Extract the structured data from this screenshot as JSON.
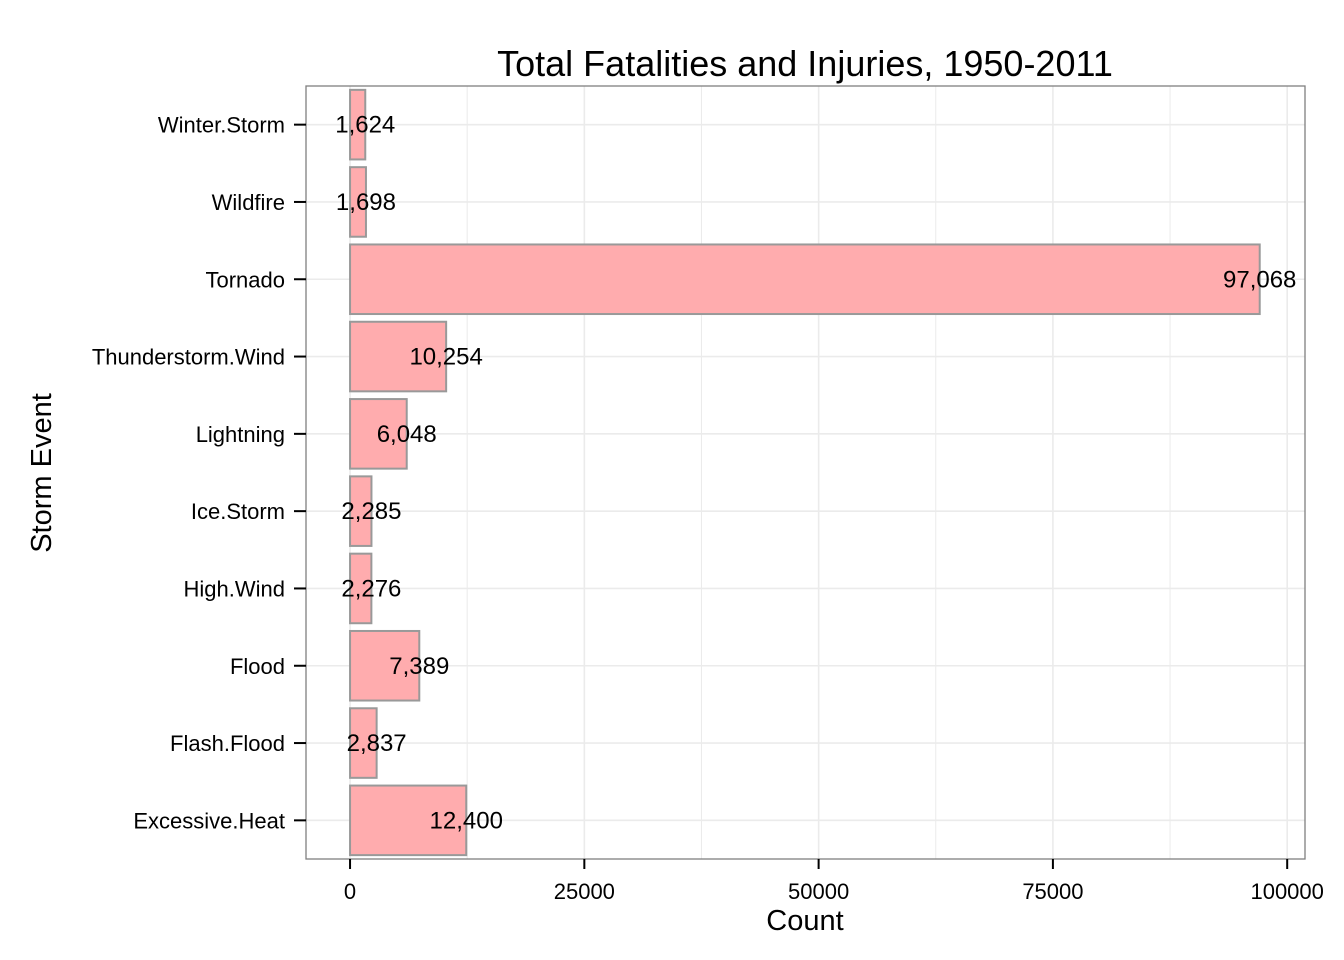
{
  "chart_data": {
    "type": "bar",
    "orientation": "horizontal",
    "title": "Total Fatalities and Injuries, 1950-2011",
    "xlabel": "Count",
    "ylabel": "Storm Event",
    "categories": [
      "Excessive.Heat",
      "Flash.Flood",
      "Flood",
      "High.Wind",
      "Ice.Storm",
      "Lightning",
      "Thunderstorm.Wind",
      "Tornado",
      "Wildfire",
      "Winter.Storm"
    ],
    "values": [
      12400,
      2837,
      7389,
      2276,
      2285,
      6048,
      10254,
      97068,
      1698,
      1624
    ],
    "data_labels": [
      "12,400",
      "2,837",
      "7,389",
      "2,276",
      "2,285",
      "6,048",
      "10,254",
      "97,068",
      "1,698",
      "1,624"
    ],
    "xlim": [
      -4700,
      101900
    ],
    "x_ticks": [
      0,
      25000,
      50000,
      75000,
      100000
    ],
    "x_tick_labels": [
      "0",
      "25000",
      "50000",
      "75000",
      "100000"
    ],
    "grid": true,
    "legend": "none",
    "colors": {
      "bar_fill": "#ffacae",
      "bar_stroke": "#999999",
      "grid": "#ebebeb",
      "panel_border": "#7f7f7f",
      "text": "#000000"
    }
  }
}
